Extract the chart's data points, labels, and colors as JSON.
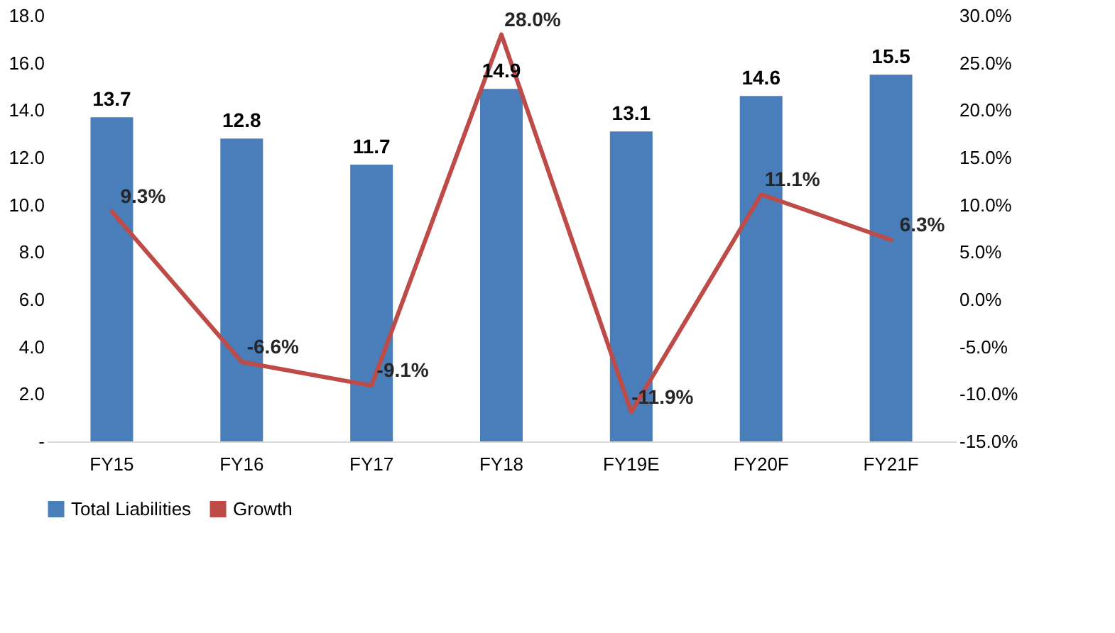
{
  "chart_data": {
    "type": "bar",
    "categories": [
      "FY15",
      "FY16",
      "FY17",
      "FY18",
      "FY19E",
      "FY20F",
      "FY21F"
    ],
    "series": [
      {
        "name": "Total Liabilities",
        "color": "#4a7ebb",
        "values": [
          13.7,
          12.8,
          11.7,
          14.9,
          13.1,
          14.6,
          15.5
        ],
        "value_labels": [
          "13.7",
          "12.8",
          "11.7",
          "14.9",
          "13.1",
          "14.6",
          "15.5"
        ]
      },
      {
        "name": "Growth",
        "type": "line",
        "axis": "y2",
        "color": "#be4b48",
        "values": [
          9.3,
          -6.6,
          -9.1,
          28.0,
          -11.9,
          11.1,
          6.3
        ],
        "value_labels": [
          "9.3%",
          "-6.6%",
          "-9.1%",
          "28.0%",
          "-11.9%",
          "11.1%",
          "6.3%"
        ]
      }
    ],
    "ylim": [
      0,
      18
    ],
    "yticks": [
      {
        "value": 0,
        "label": "-"
      },
      {
        "value": 2,
        "label": "2.0"
      },
      {
        "value": 4,
        "label": "4.0"
      },
      {
        "value": 6,
        "label": "6.0"
      },
      {
        "value": 8,
        "label": "8.0"
      },
      {
        "value": 10,
        "label": "10.0"
      },
      {
        "value": 12,
        "label": "12.0"
      },
      {
        "value": 14,
        "label": "14.0"
      },
      {
        "value": 16,
        "label": "16.0"
      },
      {
        "value": 18,
        "label": "18.0"
      }
    ],
    "y2lim": [
      -15,
      30
    ],
    "y2ticks": [
      {
        "value": -15,
        "label": "-15.0%"
      },
      {
        "value": -10,
        "label": "-10.0%"
      },
      {
        "value": -5,
        "label": "-5.0%"
      },
      {
        "value": 0,
        "label": "0.0%"
      },
      {
        "value": 5,
        "label": "5.0%"
      },
      {
        "value": 10,
        "label": "10.0%"
      },
      {
        "value": 15,
        "label": "15.0%"
      },
      {
        "value": 20,
        "label": "20.0%"
      },
      {
        "value": 25,
        "label": "25.0%"
      },
      {
        "value": 30,
        "label": "30.0%"
      }
    ],
    "legend": "bottom",
    "grid": false
  }
}
